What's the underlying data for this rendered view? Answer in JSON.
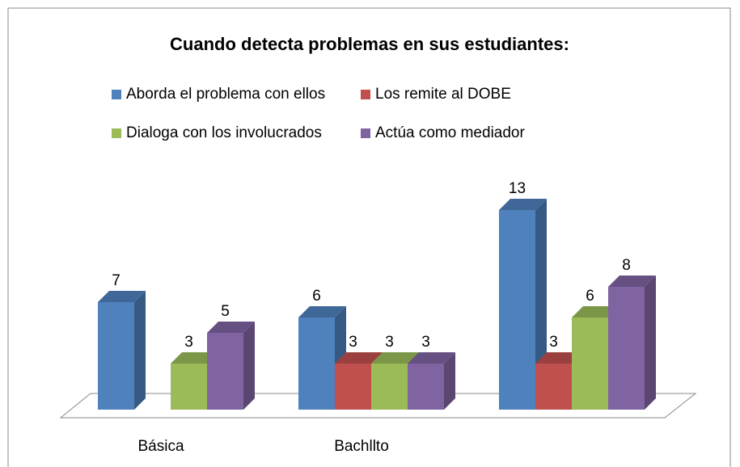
{
  "chart_data": {
    "type": "bar3d",
    "title": "Cuando detecta problemas en sus estudiantes:",
    "categories": [
      "Básica",
      "Bachllto",
      null
    ],
    "series": [
      {
        "name": "Aborda el problema con ellos",
        "color": "#4f81bd",
        "values": [
          7,
          6,
          13
        ]
      },
      {
        "name": "Los remite al DOBE",
        "color": "#c0504d",
        "values": [
          null,
          3,
          3
        ]
      },
      {
        "name": "Dialoga con los involucrados",
        "color": "#9bbb59",
        "values": [
          3,
          3,
          6
        ]
      },
      {
        "name": "Actúa como mediador",
        "color": "#8064a2",
        "values": [
          5,
          3,
          8
        ]
      }
    ]
  }
}
